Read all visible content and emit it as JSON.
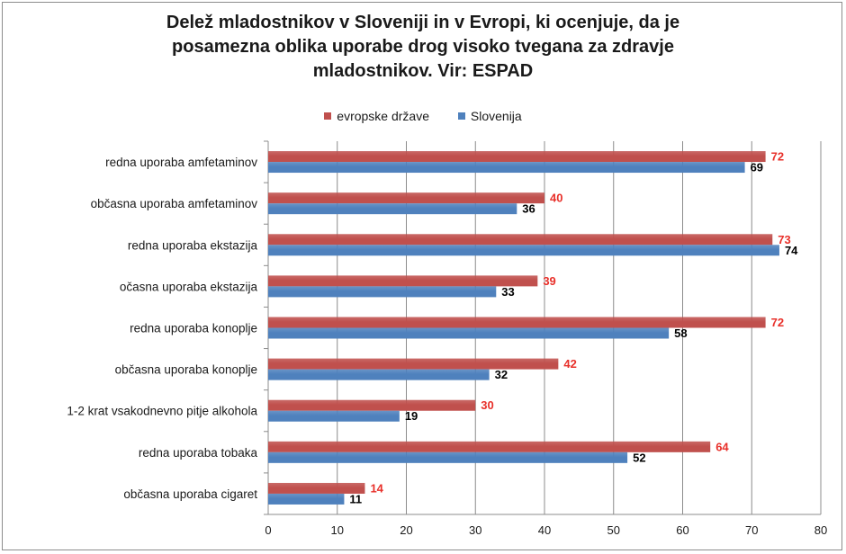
{
  "chart_data": {
    "type": "bar",
    "orientation": "horizontal",
    "title_lines": [
      "Delež mladostnikov v Sloveniji in v Evropi, ki ocenjuje, da je",
      "posamezna oblika uporabe drog visoko tvegana za zdravje",
      "mladostnikov. Vir: ESPAD"
    ],
    "categories": [
      "redna uporaba amfetaminov",
      "občasna uporaba amfetaminov",
      "redna uporaba ekstazija",
      "očasna uporaba ekstazija",
      "redna uporaba konoplje",
      "občasna uporaba konoplje",
      "1-2 krat  vsakodnevno pitje alkohola",
      "redna uporaba tobaka",
      "občasna uporaba cigaret"
    ],
    "series": [
      {
        "name": "evropske države",
        "color": "#c0504d",
        "label_color": "#e8302a",
        "values": [
          72,
          40,
          73,
          39,
          72,
          42,
          30,
          64,
          14
        ]
      },
      {
        "name": "Slovenija",
        "color": "#4f81bd",
        "label_color": "#000000",
        "values": [
          69,
          36,
          74,
          33,
          58,
          32,
          19,
          52,
          11
        ]
      }
    ],
    "xlim": [
      0,
      80
    ],
    "xticks": [
      0,
      10,
      20,
      30,
      40,
      50,
      60,
      70,
      80
    ],
    "grid": true,
    "legend_position": "top"
  }
}
